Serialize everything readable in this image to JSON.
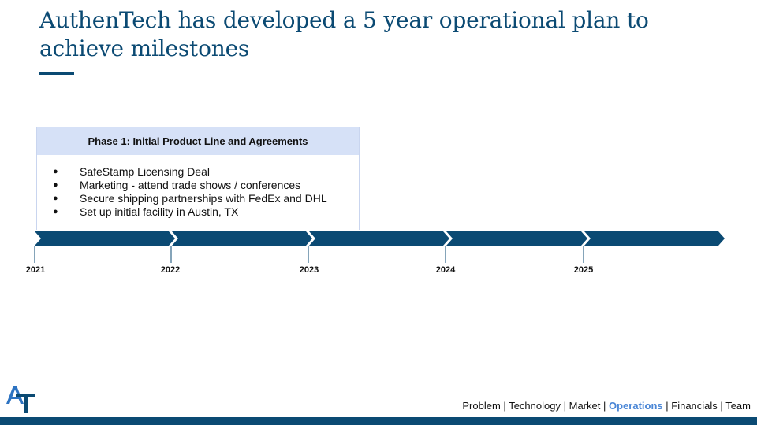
{
  "slide": {
    "title": "AuthenTech has developed a 5 year operational plan to achieve milestones"
  },
  "phase": {
    "header": "Phase 1: Initial Product Line and Agreements",
    "bullet": "●",
    "items": [
      "SafeStamp Licensing Deal",
      "Marketing - attend trade shows / conferences",
      "Secure shipping partnerships with FedEx and DHL",
      "Set up initial facility in Austin, TX"
    ]
  },
  "timeline": {
    "years": [
      "2021",
      "2022",
      "2023",
      "2024",
      "2025"
    ],
    "color": "#0b4a73"
  },
  "nav": {
    "items": [
      "Problem",
      "Technology",
      "Market",
      "Operations",
      "Financials",
      "Team"
    ],
    "separator": "|",
    "active": "Operations",
    "active_color": "#4a86d6"
  },
  "logo": {
    "icon": "authentech-logo-icon",
    "text": "AT"
  },
  "colors": {
    "brand": "#0b4a73",
    "header_fill": "#d6e1f7"
  }
}
